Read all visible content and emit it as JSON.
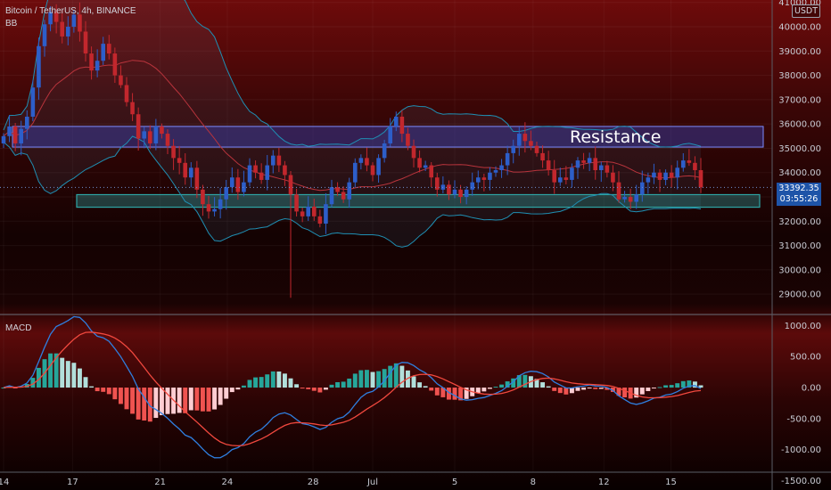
{
  "header": {
    "symbol_title": "Bitcoin / TetherUS, 4h, BINANCE",
    "indicator": "BB"
  },
  "macd_panel": {
    "title": "MACD"
  },
  "currency_button": "USDT",
  "price_tag": {
    "price": "33392.35",
    "countdown": "03:55:26"
  },
  "annotation": {
    "resistance": "Resistance"
  },
  "colors": {
    "up_candle": "#2d5ec9",
    "down_candle": "#c2272d",
    "bb_band": "#1f8fb3",
    "bb_basis": "#b8343c",
    "macd_line": "#2f7fe0",
    "signal_line": "#f0483e",
    "resistance_zone": "#3a4bd6",
    "support_zone": "#2ea6a6"
  },
  "chart_data": [
    {
      "type": "candlestick",
      "title": "Bitcoin / TetherUS, 4h, BINANCE",
      "indicators": [
        "BB"
      ],
      "x_tick_labels": [
        "14",
        "17",
        "21",
        "24",
        "28",
        "Jul",
        "5",
        "8",
        "12",
        "15"
      ],
      "y_tick_labels": [
        "41000.00",
        "40000.00",
        "39000.00",
        "38000.00",
        "37000.00",
        "36000.00",
        "35000.00",
        "34000.00",
        "33000.00",
        "32000.00",
        "31000.00",
        "30000.00",
        "29000.00"
      ],
      "ylim": [
        28200,
        41100
      ],
      "last_price": 33392.35,
      "zones": [
        {
          "label": "Resistance",
          "from": 35050,
          "to": 35900
        },
        {
          "label": "",
          "from": 32870,
          "to": 33020
        }
      ],
      "series": [
        {
          "name": "close_path",
          "values": [
            35500,
            35900,
            35200,
            35800,
            36300,
            37500,
            39200,
            40100,
            40600,
            40200,
            39600,
            40000,
            40500,
            39800,
            38900,
            38200,
            38600,
            39300,
            38900,
            38000,
            37600,
            36900,
            36400,
            35400,
            35700,
            35200,
            35900,
            35600,
            35100,
            34600,
            34400,
            33800,
            34200,
            33300,
            32700,
            32400,
            32500,
            32900,
            33400,
            33800,
            33200,
            33600,
            34300,
            34000,
            33700,
            34300,
            34700,
            34300,
            33900,
            33100,
            32400,
            32200,
            32600,
            32200,
            31900,
            32700,
            33400,
            33200,
            32900,
            33600,
            34400,
            34600,
            34300,
            33900,
            34600,
            35200,
            35900,
            36300,
            35600,
            35100,
            34600,
            34200,
            34300,
            33800,
            33300,
            33500,
            33100,
            33300,
            33000,
            33300,
            33600,
            33800,
            33700,
            34000,
            34100,
            34300,
            34800,
            35100,
            35600,
            35300,
            35100,
            34800,
            34500,
            34100,
            33600,
            33800,
            33700,
            34200,
            34500,
            34400,
            34600,
            34100,
            34300,
            34000,
            33600,
            32900,
            33000,
            32800,
            33100,
            33600,
            33800,
            34000,
            33700,
            34000,
            33800,
            34200,
            34500,
            34400,
            34100,
            33392
          ]
        }
      ]
    },
    {
      "type": "macd",
      "title": "MACD",
      "y_tick_labels": [
        "1000.00",
        "500.00",
        "0.00",
        "-500.00",
        "-1000.00",
        "-1500.00"
      ],
      "ylim": [
        -1580,
        1150
      ]
    }
  ]
}
